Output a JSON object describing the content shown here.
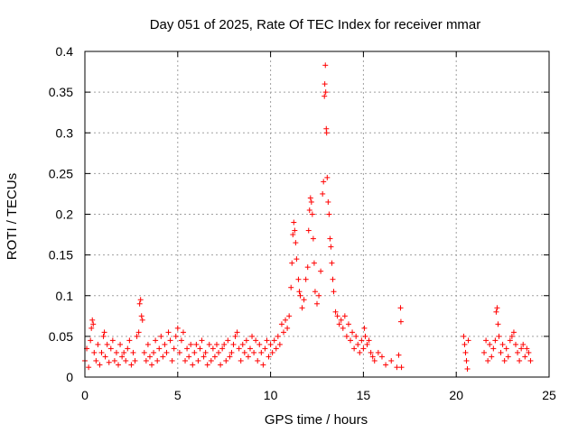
{
  "chart_data": {
    "type": "scatter",
    "title": "Day 051 of 2025, Rate Of TEC Index for receiver mmar",
    "xlabel": "GPS time / hours",
    "ylabel": "ROTI / TECUs",
    "xlim": [
      0,
      25
    ],
    "ylim": [
      0,
      0.4
    ],
    "xticks": [
      0,
      5,
      10,
      15,
      20,
      25
    ],
    "xtick_labels": [
      "0",
      "5",
      "10",
      "15",
      "20",
      "25"
    ],
    "yticks": [
      0,
      0.05,
      0.1,
      0.15,
      0.2,
      0.25,
      0.3,
      0.35,
      0.4
    ],
    "ytick_labels": [
      "0",
      "0.05",
      "0.1",
      "0.15",
      "0.2",
      "0.25",
      "0.3",
      "0.35",
      "0.4"
    ],
    "grid": true,
    "marker": "plus",
    "series": [
      {
        "name": "ROTI",
        "color": "#ff0000",
        "points": [
          [
            0.0,
            0.02
          ],
          [
            0.1,
            0.035
          ],
          [
            0.2,
            0.012
          ],
          [
            0.3,
            0.045
          ],
          [
            0.35,
            0.06
          ],
          [
            0.4,
            0.07
          ],
          [
            0.45,
            0.065
          ],
          [
            0.5,
            0.03
          ],
          [
            0.6,
            0.02
          ],
          [
            0.7,
            0.04
          ],
          [
            0.8,
            0.015
          ],
          [
            0.9,
            0.03
          ],
          [
            1.0,
            0.05
          ],
          [
            1.05,
            0.055
          ],
          [
            1.1,
            0.025
          ],
          [
            1.2,
            0.04
          ],
          [
            1.3,
            0.018
          ],
          [
            1.4,
            0.035
          ],
          [
            1.5,
            0.045
          ],
          [
            1.6,
            0.02
          ],
          [
            1.7,
            0.03
          ],
          [
            1.8,
            0.015
          ],
          [
            1.9,
            0.04
          ],
          [
            2.0,
            0.025
          ],
          [
            2.1,
            0.03
          ],
          [
            2.2,
            0.02
          ],
          [
            2.3,
            0.035
          ],
          [
            2.4,
            0.045
          ],
          [
            2.5,
            0.015
          ],
          [
            2.6,
            0.03
          ],
          [
            2.7,
            0.02
          ],
          [
            2.8,
            0.05
          ],
          [
            2.9,
            0.055
          ],
          [
            2.95,
            0.09
          ],
          [
            3.0,
            0.095
          ],
          [
            3.05,
            0.075
          ],
          [
            3.1,
            0.07
          ],
          [
            3.2,
            0.03
          ],
          [
            3.3,
            0.02
          ],
          [
            3.4,
            0.04
          ],
          [
            3.5,
            0.025
          ],
          [
            3.6,
            0.015
          ],
          [
            3.7,
            0.03
          ],
          [
            3.8,
            0.045
          ],
          [
            3.9,
            0.02
          ],
          [
            4.0,
            0.035
          ],
          [
            4.1,
            0.05
          ],
          [
            4.2,
            0.025
          ],
          [
            4.3,
            0.04
          ],
          [
            4.4,
            0.03
          ],
          [
            4.5,
            0.055
          ],
          [
            4.6,
            0.045
          ],
          [
            4.7,
            0.02
          ],
          [
            4.8,
            0.035
          ],
          [
            4.9,
            0.05
          ],
          [
            5.0,
            0.06
          ],
          [
            5.1,
            0.03
          ],
          [
            5.2,
            0.045
          ],
          [
            5.3,
            0.055
          ],
          [
            5.4,
            0.02
          ],
          [
            5.5,
            0.035
          ],
          [
            5.6,
            0.025
          ],
          [
            5.7,
            0.04
          ],
          [
            5.8,
            0.015
          ],
          [
            5.9,
            0.03
          ],
          [
            6.0,
            0.04
          ],
          [
            6.1,
            0.02
          ],
          [
            6.2,
            0.035
          ],
          [
            6.3,
            0.045
          ],
          [
            6.4,
            0.025
          ],
          [
            6.5,
            0.03
          ],
          [
            6.6,
            0.015
          ],
          [
            6.7,
            0.04
          ],
          [
            6.8,
            0.02
          ],
          [
            6.9,
            0.035
          ],
          [
            7.0,
            0.025
          ],
          [
            7.1,
            0.04
          ],
          [
            7.2,
            0.03
          ],
          [
            7.3,
            0.015
          ],
          [
            7.4,
            0.035
          ],
          [
            7.5,
            0.04
          ],
          [
            7.6,
            0.02
          ],
          [
            7.7,
            0.045
          ],
          [
            7.8,
            0.025
          ],
          [
            7.9,
            0.03
          ],
          [
            8.0,
            0.04
          ],
          [
            8.1,
            0.05
          ],
          [
            8.2,
            0.055
          ],
          [
            8.3,
            0.035
          ],
          [
            8.4,
            0.02
          ],
          [
            8.5,
            0.04
          ],
          [
            8.6,
            0.03
          ],
          [
            8.7,
            0.045
          ],
          [
            8.8,
            0.025
          ],
          [
            8.9,
            0.035
          ],
          [
            9.0,
            0.05
          ],
          [
            9.1,
            0.03
          ],
          [
            9.2,
            0.045
          ],
          [
            9.3,
            0.02
          ],
          [
            9.4,
            0.04
          ],
          [
            9.5,
            0.03
          ],
          [
            9.6,
            0.015
          ],
          [
            9.7,
            0.035
          ],
          [
            9.8,
            0.045
          ],
          [
            9.9,
            0.025
          ],
          [
            10.0,
            0.04
          ],
          [
            10.1,
            0.03
          ],
          [
            10.2,
            0.045
          ],
          [
            10.3,
            0.035
          ],
          [
            10.4,
            0.05
          ],
          [
            10.5,
            0.04
          ],
          [
            10.6,
            0.065
          ],
          [
            10.7,
            0.055
          ],
          [
            10.8,
            0.07
          ],
          [
            10.9,
            0.06
          ],
          [
            11.0,
            0.075
          ],
          [
            11.1,
            0.11
          ],
          [
            11.15,
            0.14
          ],
          [
            11.2,
            0.175
          ],
          [
            11.25,
            0.19
          ],
          [
            11.3,
            0.18
          ],
          [
            11.35,
            0.165
          ],
          [
            11.4,
            0.145
          ],
          [
            11.5,
            0.12
          ],
          [
            11.55,
            0.105
          ],
          [
            11.6,
            0.1
          ],
          [
            11.7,
            0.085
          ],
          [
            11.8,
            0.095
          ],
          [
            11.9,
            0.12
          ],
          [
            12.0,
            0.135
          ],
          [
            12.05,
            0.18
          ],
          [
            12.1,
            0.205
          ],
          [
            12.15,
            0.22
          ],
          [
            12.2,
            0.215
          ],
          [
            12.25,
            0.2
          ],
          [
            12.3,
            0.17
          ],
          [
            12.35,
            0.14
          ],
          [
            12.4,
            0.105
          ],
          [
            12.5,
            0.09
          ],
          [
            12.6,
            0.1
          ],
          [
            12.7,
            0.13
          ],
          [
            12.8,
            0.225
          ],
          [
            12.85,
            0.24
          ],
          [
            12.9,
            0.345
          ],
          [
            12.92,
            0.36
          ],
          [
            12.95,
            0.383
          ],
          [
            12.97,
            0.35
          ],
          [
            13.0,
            0.305
          ],
          [
            13.02,
            0.3
          ],
          [
            13.05,
            0.245
          ],
          [
            13.1,
            0.215
          ],
          [
            13.15,
            0.2
          ],
          [
            13.2,
            0.17
          ],
          [
            13.25,
            0.16
          ],
          [
            13.3,
            0.14
          ],
          [
            13.35,
            0.12
          ],
          [
            13.4,
            0.105
          ],
          [
            13.5,
            0.08
          ],
          [
            13.6,
            0.075
          ],
          [
            13.7,
            0.065
          ],
          [
            13.8,
            0.07
          ],
          [
            13.9,
            0.06
          ],
          [
            14.0,
            0.075
          ],
          [
            14.1,
            0.05
          ],
          [
            14.2,
            0.065
          ],
          [
            14.3,
            0.045
          ],
          [
            14.4,
            0.055
          ],
          [
            14.5,
            0.035
          ],
          [
            14.6,
            0.05
          ],
          [
            14.7,
            0.04
          ],
          [
            14.8,
            0.03
          ],
          [
            14.9,
            0.045
          ],
          [
            15.0,
            0.035
          ],
          [
            15.05,
            0.06
          ],
          [
            15.1,
            0.05
          ],
          [
            15.2,
            0.04
          ],
          [
            15.3,
            0.045
          ],
          [
            15.4,
            0.03
          ],
          [
            15.5,
            0.025
          ],
          [
            15.6,
            0.02
          ],
          [
            15.8,
            0.03
          ],
          [
            16.0,
            0.025
          ],
          [
            16.2,
            0.015
          ],
          [
            16.5,
            0.02
          ],
          [
            16.8,
            0.012
          ],
          [
            16.9,
            0.027
          ],
          [
            17.0,
            0.085
          ],
          [
            17.02,
            0.068
          ],
          [
            17.05,
            0.012
          ],
          [
            20.4,
            0.05
          ],
          [
            20.45,
            0.04
          ],
          [
            20.5,
            0.03
          ],
          [
            20.55,
            0.02
          ],
          [
            20.6,
            0.01
          ],
          [
            20.65,
            0.045
          ],
          [
            21.5,
            0.03
          ],
          [
            21.6,
            0.045
          ],
          [
            21.7,
            0.02
          ],
          [
            21.8,
            0.04
          ],
          [
            21.9,
            0.025
          ],
          [
            22.0,
            0.035
          ],
          [
            22.1,
            0.045
          ],
          [
            22.15,
            0.08
          ],
          [
            22.2,
            0.085
          ],
          [
            22.25,
            0.065
          ],
          [
            22.3,
            0.05
          ],
          [
            22.4,
            0.03
          ],
          [
            22.5,
            0.04
          ],
          [
            22.6,
            0.02
          ],
          [
            22.7,
            0.035
          ],
          [
            22.8,
            0.025
          ],
          [
            22.9,
            0.045
          ],
          [
            23.0,
            0.05
          ],
          [
            23.1,
            0.055
          ],
          [
            23.2,
            0.04
          ],
          [
            23.3,
            0.03
          ],
          [
            23.4,
            0.02
          ],
          [
            23.5,
            0.035
          ],
          [
            23.6,
            0.04
          ],
          [
            23.7,
            0.025
          ],
          [
            23.8,
            0.035
          ],
          [
            23.9,
            0.03
          ],
          [
            24.0,
            0.02
          ]
        ]
      }
    ]
  }
}
